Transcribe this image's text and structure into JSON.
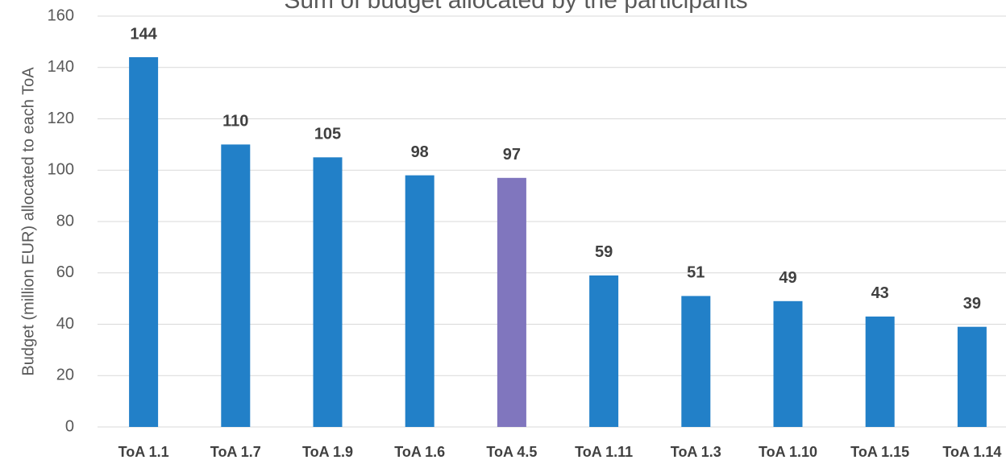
{
  "chart_data": {
    "type": "bar",
    "title": "Sum of budget allocated by the participants",
    "y_label": "Budget (million EUR) allocated to each ToA",
    "categories": [
      "ToA 1.1",
      "ToA 1.7",
      "ToA 1.9",
      "ToA 1.6",
      "ToA 4.5",
      "ToA 1.11",
      "ToA 1.3",
      "ToA 1.10",
      "ToA 1.15",
      "ToA 1.14"
    ],
    "values": [
      144,
      110,
      105,
      98,
      97,
      59,
      51,
      49,
      43,
      39
    ],
    "colors": [
      "#2280c8",
      "#2280c8",
      "#2280c8",
      "#2280c8",
      "#8076be",
      "#2280c8",
      "#2280c8",
      "#2280c8",
      "#2280c8",
      "#2280c8"
    ],
    "ylim": [
      0,
      160
    ],
    "yticks": [
      0,
      20,
      40,
      60,
      80,
      100,
      120,
      140,
      160
    ],
    "grid": true
  }
}
